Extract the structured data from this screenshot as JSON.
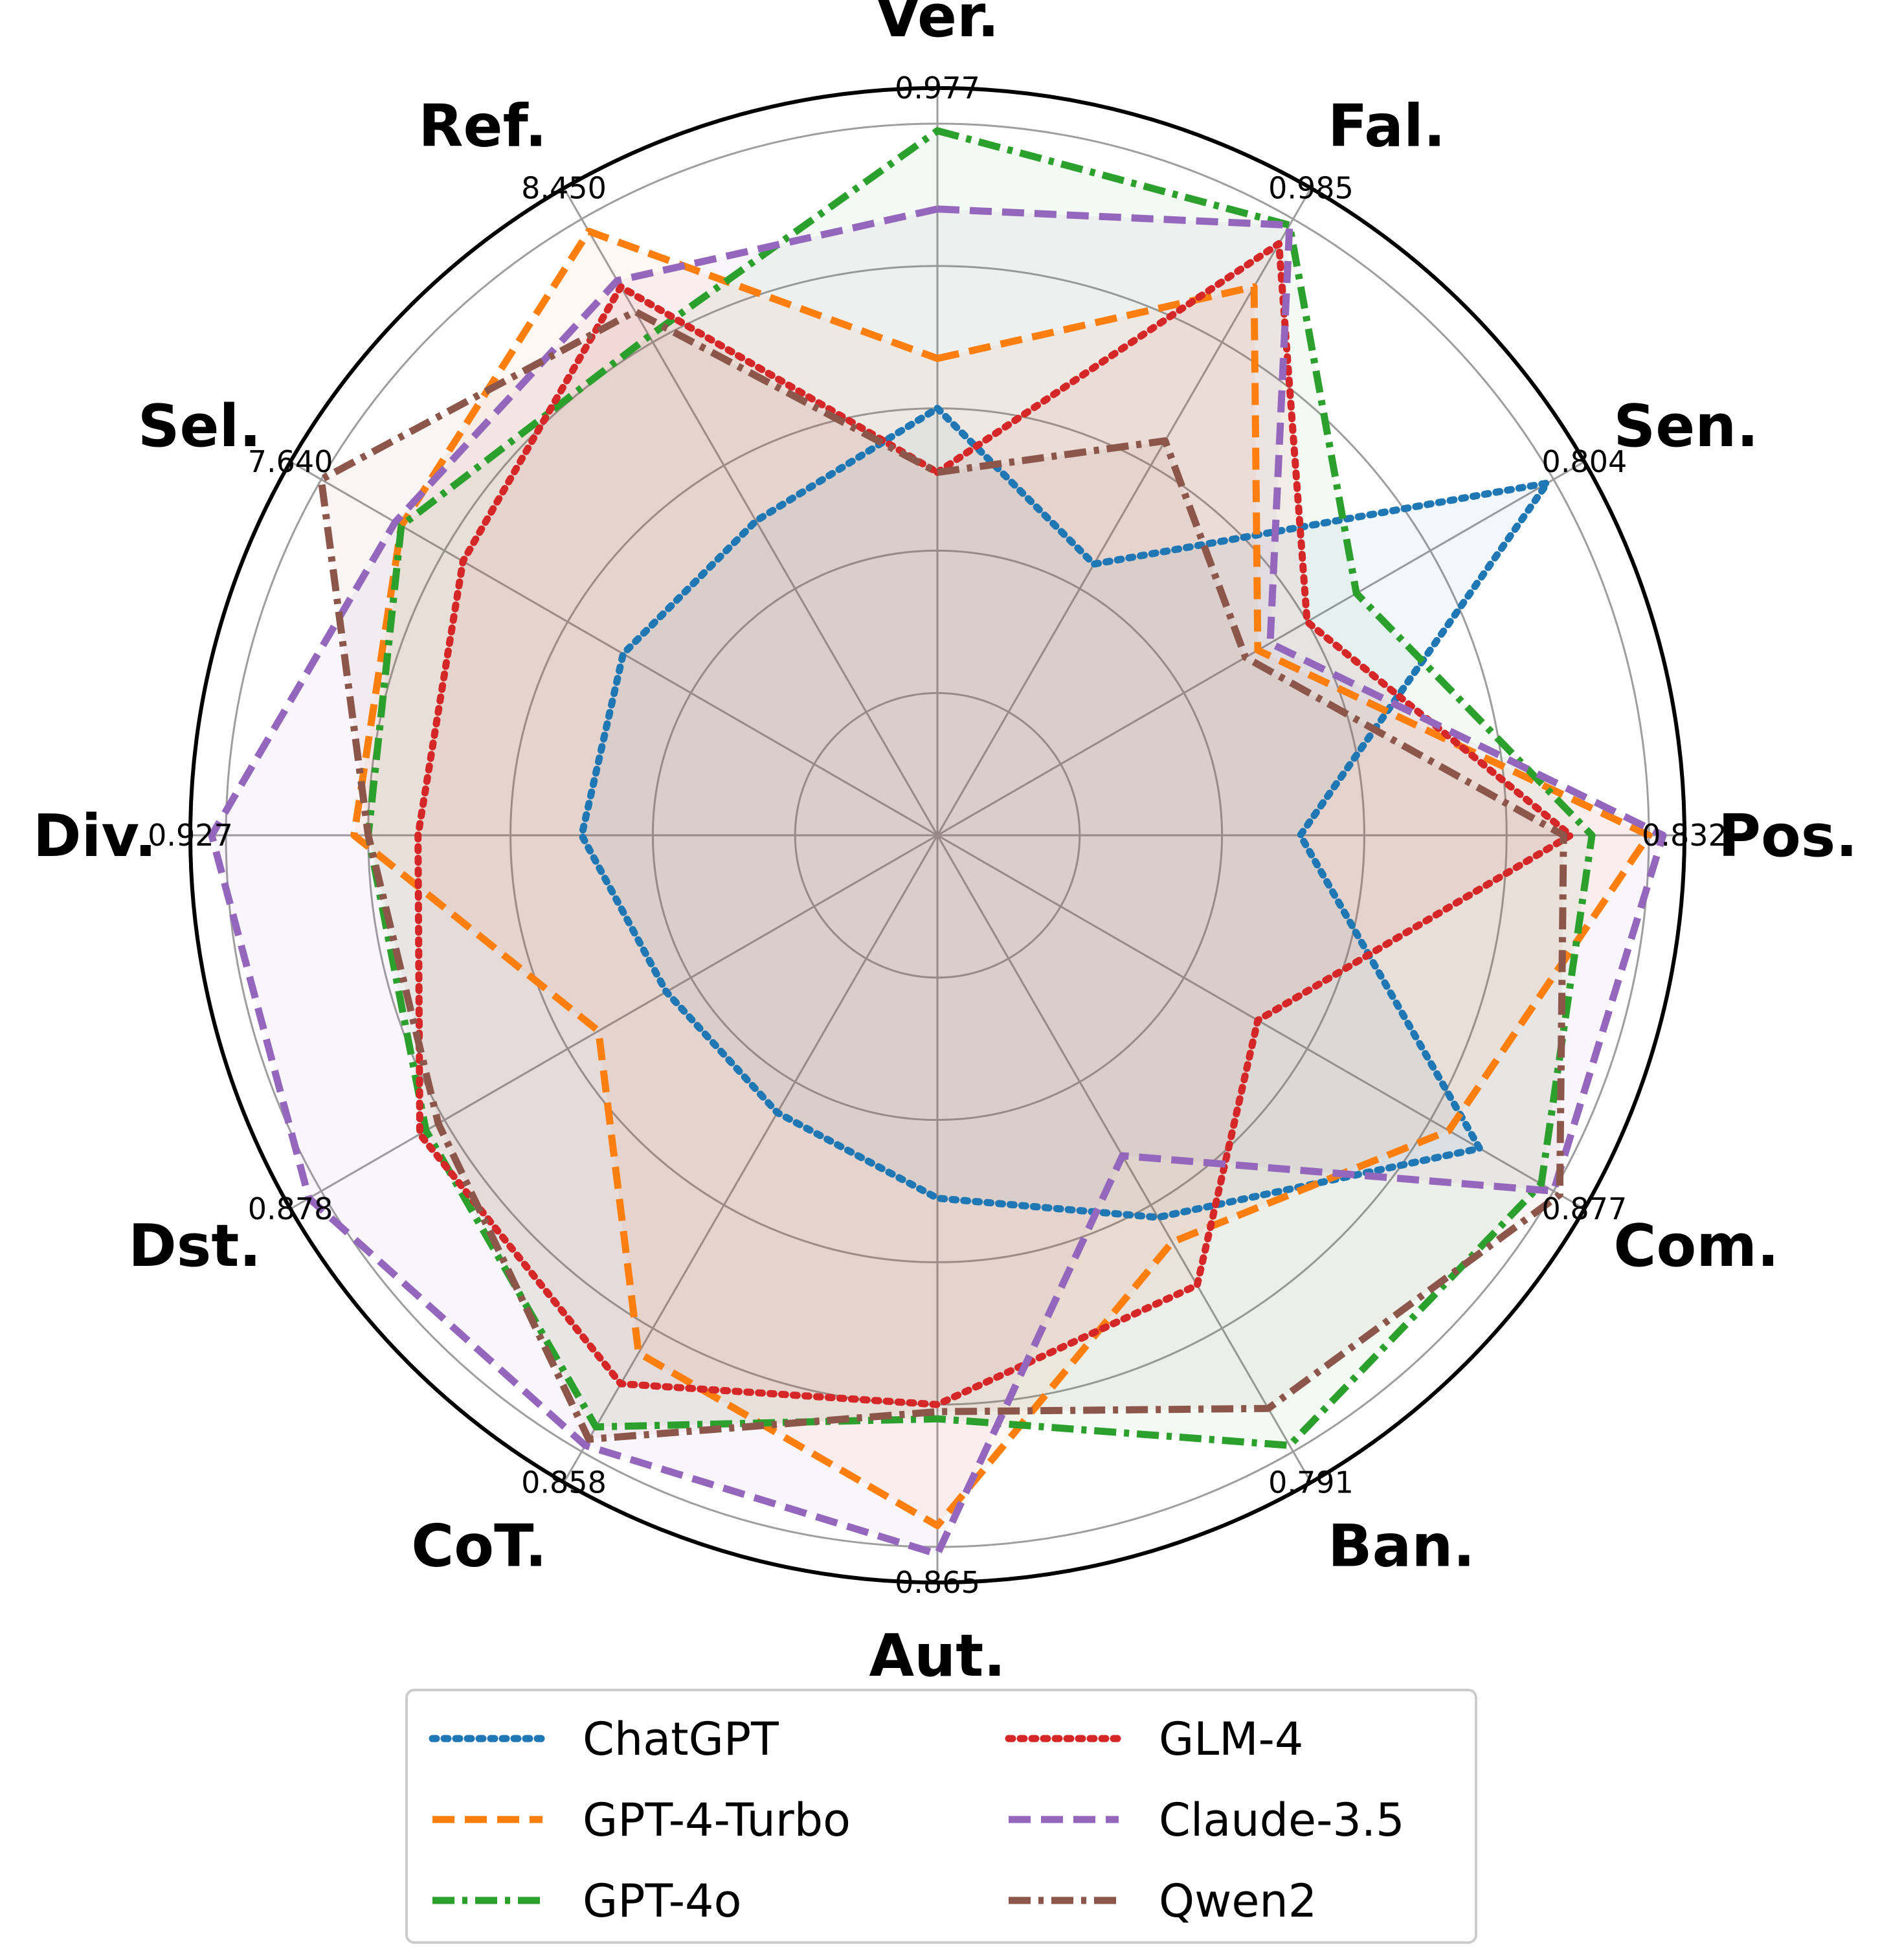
{
  "chart_data": {
    "type": "radar",
    "axes": [
      "Ver.",
      "Fal.",
      "Sen.",
      "Pos.",
      "Com.",
      "Ban.",
      "Aut.",
      "CoT.",
      "Dst.",
      "Div.",
      "Sel.",
      "Ref."
    ],
    "axis_max_labels": [
      "0.977",
      "0.985",
      "0.804",
      "0.832",
      "0.877",
      "0.791",
      "0.865",
      "0.858",
      "0.878",
      "0.927",
      "7.640",
      "8.450"
    ],
    "series": [
      {
        "name": "ChatGPT",
        "color": "#1f77b4",
        "dash": "dotted",
        "values": [
          0.6,
          0.44,
          0.99,
          0.51,
          0.88,
          0.62,
          0.51,
          0.45,
          0.44,
          0.5,
          0.51,
          0.51
        ]
      },
      {
        "name": "GPT-4-Turbo",
        "color": "#ff7f0e",
        "dash": "dashed",
        "values": [
          0.67,
          0.89,
          0.52,
          1.0,
          0.83,
          0.66,
          0.97,
          0.84,
          0.55,
          0.82,
          0.87,
          0.98
        ]
      },
      {
        "name": "GPT-4o",
        "color": "#2ca02c",
        "dash": "dashdot",
        "values": [
          0.99,
          0.99,
          0.68,
          0.92,
          0.98,
          0.99,
          0.82,
          0.96,
          0.83,
          0.8,
          0.87,
          0.81
        ]
      },
      {
        "name": "GLM-4",
        "color": "#d62728",
        "dash": "dotted",
        "values": [
          0.51,
          0.96,
          0.6,
          0.89,
          0.52,
          0.73,
          0.8,
          0.89,
          0.84,
          0.73,
          0.77,
          0.89
        ]
      },
      {
        "name": "Claude-3.5",
        "color": "#9467bd",
        "dash": "dashed",
        "values": [
          0.88,
          0.99,
          0.54,
          1.02,
          1.0,
          0.52,
          1.01,
          0.99,
          1.02,
          1.02,
          0.88,
          0.9
        ]
      },
      {
        "name": "Qwen2",
        "color": "#8c564b",
        "dash": "dashdot",
        "values": [
          0.51,
          0.64,
          0.5,
          0.88,
          1.01,
          0.93,
          0.81,
          0.98,
          0.81,
          0.8,
          1.0,
          0.85
        ]
      }
    ],
    "rlim": [
      0,
      1.05
    ],
    "grid": true,
    "legend_position": "bottom",
    "legend_columns": 2
  }
}
